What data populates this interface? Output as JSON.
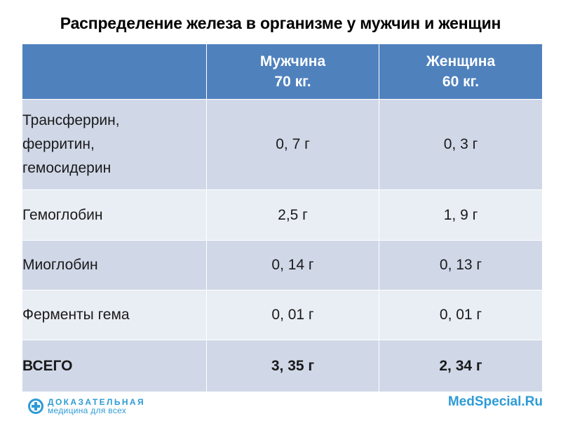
{
  "title": "Распределение железа в организме у мужчин и женщин",
  "table": {
    "header": {
      "col1": "",
      "col2_line1": "Мужчина",
      "col2_line2": "70 кг.",
      "col3_line1": "Женщина",
      "col3_line2": "60 кг."
    },
    "rows": [
      {
        "label_lines": [
          "Трансферрин,",
          "ферритин,",
          "гемосидерин"
        ],
        "male": "0, 7 г",
        "female": "0, 3 г"
      },
      {
        "label": "Гемоглобин",
        "male": "2,5 г",
        "female": "1, 9 г"
      },
      {
        "label": "Миоглобин",
        "male": "0, 14 г",
        "female": "0, 13 г"
      },
      {
        "label": "Ферменты гема",
        "male": "0, 01 г",
        "female": "0, 01 г"
      },
      {
        "label": "ВСЕГО",
        "male": "3, 35 г",
        "female": "2, 34 г"
      }
    ]
  },
  "footer": {
    "logo_line1": "ДОКАЗАТЕЛЬНАЯ",
    "logo_line2": "медицина для всех",
    "logo_icon": "medical-cross-circle-icon",
    "site": "MedSpecial.Ru"
  },
  "colors": {
    "header_bg": "#4f81bd",
    "row_dark": "#d0d8e8",
    "row_light": "#e9edf4",
    "brand": "#2e9bd6"
  }
}
